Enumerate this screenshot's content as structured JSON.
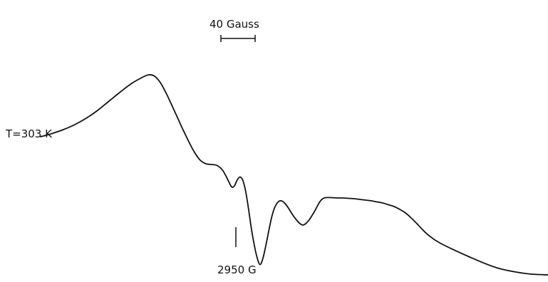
{
  "chart_data": {
    "type": "line",
    "annotations": {
      "temperature": "T=303 K",
      "scale_bar": "40 Gauss",
      "field_marker": "2950 G"
    },
    "scale_bar_gauss": 40,
    "field_marker_gauss": 2950,
    "axes_shown": false,
    "grid": false,
    "series": [
      {
        "x": [
          0,
          16,
          32,
          48,
          64,
          80,
          96,
          112,
          128,
          144,
          152,
          160,
          168,
          176,
          184,
          192,
          200,
          208,
          216,
          224,
          232,
          240,
          248,
          256,
          264,
          268,
          272,
          276,
          280,
          284,
          288,
          292,
          296,
          300,
          304,
          308,
          312,
          316,
          320,
          324,
          328,
          332,
          336,
          340,
          344,
          348,
          352,
          356,
          360,
          364,
          368,
          372,
          376,
          380,
          384,
          388,
          392,
          396,
          400,
          408,
          416,
          424,
          432,
          440,
          448,
          456,
          464,
          472,
          480,
          488,
          496,
          504,
          512,
          520,
          528,
          536,
          544,
          560,
          600,
          640,
          680,
          712
        ],
        "y": [
          -2.4,
          -1.5,
          -0.4,
          1.0,
          2.8,
          5.0,
          7.6,
          10.2,
          12.6,
          14.4,
          15.0,
          14.6,
          12.8,
          9.9,
          6.5,
          3.0,
          -0.5,
          -3.8,
          -6.8,
          -9.0,
          -10.0,
          -10.2,
          -10.5,
          -12.0,
          -15.0,
          -16.5,
          -16.2,
          -14.5,
          -13.7,
          -14.8,
          -18.0,
          -23.0,
          -28.5,
          -33.0,
          -36.5,
          -38.3,
          -36.5,
          -33.0,
          -29.0,
          -25.2,
          -22.5,
          -21.0,
          -20.4,
          -20.6,
          -21.4,
          -22.5,
          -23.8,
          -25.0,
          -26.0,
          -26.8,
          -27.2,
          -26.8,
          -26.0,
          -24.8,
          -23.5,
          -22.0,
          -20.6,
          -19.8,
          -19.5,
          -19.5,
          -19.6,
          -19.6,
          -19.7,
          -19.8,
          -20.0,
          -20.2,
          -20.4,
          -20.7,
          -21.0,
          -21.5,
          -22.0,
          -22.8,
          -23.8,
          -25.2,
          -26.8,
          -28.5,
          -30.0,
          -32.2,
          -36.0,
          -39.2,
          -40.8,
          -41.2
        ]
      }
    ]
  }
}
